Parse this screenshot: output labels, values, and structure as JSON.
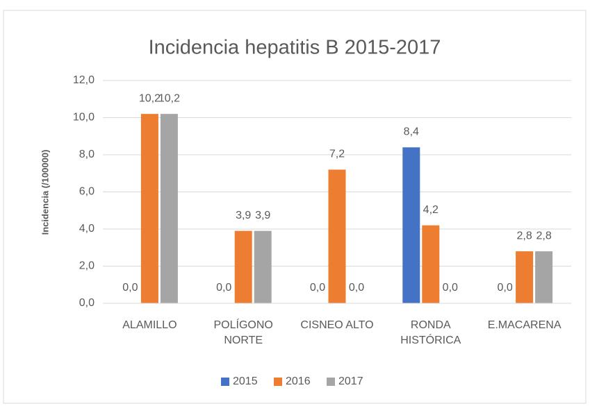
{
  "chart_data": {
    "type": "bar",
    "title": "Incidencia hepatitis B 2015-2017",
    "y_label": "Incidencia (/100000)",
    "categories": [
      "ALAMILLO",
      "POLÍGONO NORTE",
      "CISNEO ALTO",
      "RONDA HISTÓRICA",
      "E.MACARENA"
    ],
    "series": [
      {
        "name": "2015",
        "color": "#4472c4",
        "values": [
          0,
          0,
          0,
          8.4,
          0
        ],
        "value_labels": [
          "0,0",
          "0,0",
          "0,0",
          "8,4",
          "0,0"
        ]
      },
      {
        "name": "2016",
        "color": "#ed7d31",
        "values": [
          10.2,
          3.9,
          7.2,
          4.2,
          2.8
        ],
        "value_labels": [
          "10,2",
          "3,9",
          "7,2",
          "4,2",
          "2,8"
        ]
      },
      {
        "name": "2017",
        "color": "#a5a5a5",
        "values": [
          10.2,
          3.9,
          0,
          0,
          2.8
        ],
        "value_labels": [
          "10,2",
          "3,9",
          "0,0",
          "0,0",
          "2,8"
        ]
      }
    ],
    "ylim": [
      0,
      12
    ],
    "yticks": [
      {
        "value": 0,
        "label": "0,0"
      },
      {
        "value": 2,
        "label": "2,0"
      },
      {
        "value": 4,
        "label": "4,0"
      },
      {
        "value": 6,
        "label": "6,0"
      },
      {
        "value": 8,
        "label": "8,0"
      },
      {
        "value": 10,
        "label": "10,0"
      },
      {
        "value": 12,
        "label": "12,0"
      }
    ],
    "grid": true,
    "legend": "bottom"
  }
}
